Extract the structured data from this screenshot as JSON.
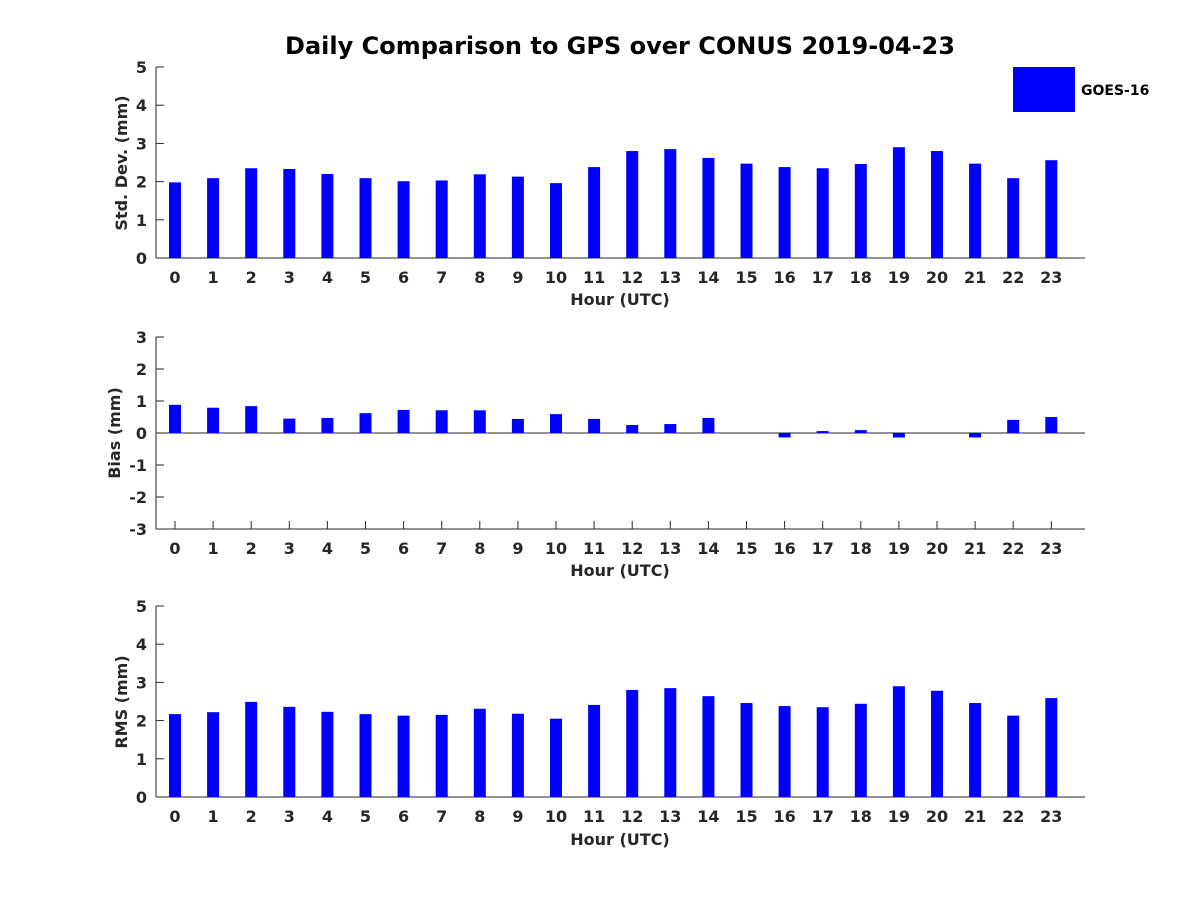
{
  "figure_title": "Daily Comparison to GPS over CONUS 2019-04-23",
  "legend": {
    "label": "GOES-16",
    "color": "#0000ff"
  },
  "chart_data": [
    {
      "type": "bar",
      "title": "Daily Comparison to GPS over CONUS 2019-04-23",
      "xlabel": "Hour (UTC)",
      "ylabel": "Std. Dev. (mm)",
      "ylim": [
        0,
        5
      ],
      "yticks": [
        "0",
        "1",
        "2",
        "3",
        "4",
        "5"
      ],
      "categories": [
        "0",
        "1",
        "2",
        "3",
        "4",
        "5",
        "6",
        "7",
        "8",
        "9",
        "10",
        "11",
        "12",
        "13",
        "14",
        "15",
        "16",
        "17",
        "18",
        "19",
        "20",
        "21",
        "22",
        "23"
      ],
      "series": [
        {
          "name": "GOES-16",
          "color": "#0000ff",
          "values": [
            1.98,
            2.09,
            2.35,
            2.33,
            2.2,
            2.09,
            2.01,
            2.03,
            2.19,
            2.13,
            1.96,
            2.38,
            2.8,
            2.85,
            2.62,
            2.47,
            2.38,
            2.35,
            2.46,
            2.9,
            2.8,
            2.47,
            2.09,
            2.56
          ]
        }
      ]
    },
    {
      "type": "bar",
      "xlabel": "Hour (UTC)",
      "ylabel": "Bias (mm)",
      "ylim": [
        -3,
        3
      ],
      "yticks": [
        "-3",
        "-2",
        "-1",
        "0",
        "1",
        "2",
        "3"
      ],
      "categories": [
        "0",
        "1",
        "2",
        "3",
        "4",
        "5",
        "6",
        "7",
        "8",
        "9",
        "10",
        "11",
        "12",
        "13",
        "14",
        "15",
        "16",
        "17",
        "18",
        "19",
        "20",
        "21",
        "22",
        "23"
      ],
      "zero_line": true,
      "series": [
        {
          "name": "GOES-16",
          "color": "#0000ff",
          "values": [
            0.88,
            0.79,
            0.84,
            0.45,
            0.47,
            0.62,
            0.72,
            0.71,
            0.71,
            0.44,
            0.59,
            0.44,
            0.25,
            0.28,
            0.47,
            0.0,
            -0.14,
            0.06,
            0.09,
            -0.14,
            0.0,
            -0.14,
            0.41,
            0.5
          ]
        }
      ]
    },
    {
      "type": "bar",
      "xlabel": "Hour (UTC)",
      "ylabel": "RMS (mm)",
      "ylim": [
        0,
        5
      ],
      "yticks": [
        "0",
        "1",
        "2",
        "3",
        "4",
        "5"
      ],
      "categories": [
        "0",
        "1",
        "2",
        "3",
        "4",
        "5",
        "6",
        "7",
        "8",
        "9",
        "10",
        "11",
        "12",
        "13",
        "14",
        "15",
        "16",
        "17",
        "18",
        "19",
        "20",
        "21",
        "22",
        "23"
      ],
      "series": [
        {
          "name": "GOES-16",
          "color": "#0000ff",
          "values": [
            2.17,
            2.22,
            2.49,
            2.36,
            2.23,
            2.17,
            2.13,
            2.15,
            2.31,
            2.18,
            2.05,
            2.41,
            2.8,
            2.85,
            2.64,
            2.46,
            2.38,
            2.35,
            2.44,
            2.9,
            2.78,
            2.46,
            2.13,
            2.59
          ]
        }
      ]
    }
  ]
}
